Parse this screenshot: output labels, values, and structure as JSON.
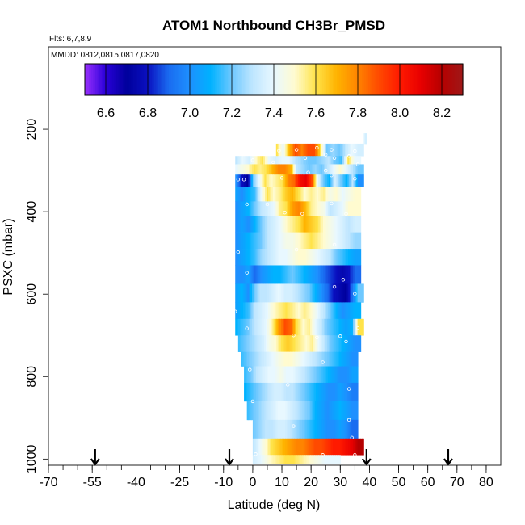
{
  "chart_data": {
    "type": "heatmap",
    "title": "ATOM1 Northbound CH3Br_PMSD",
    "subtitle_flights": "Flts: 6,7,8,9",
    "subtitle_dates": "MMDD: 0812,0815,0817,0820",
    "xlabel": "Latitude (deg N)",
    "ylabel": "PSXC (mbar)",
    "xlim": [
      -70,
      85
    ],
    "ylim": [
      1015,
      0
    ],
    "x_ticks": [
      -70,
      -55,
      -40,
      -25,
      -10,
      0,
      10,
      20,
      30,
      40,
      50,
      60,
      70,
      80
    ],
    "x_tick_labels": [
      "-70",
      "-55",
      "-40",
      "-25",
      "-10",
      "0",
      "10",
      "20",
      "30",
      "40",
      "50",
      "60",
      "70",
      "80"
    ],
    "x_minor_step": 5,
    "y_ticks": [
      200,
      400,
      600,
      800,
      1000
    ],
    "y_tick_labels": [
      "200",
      "400",
      "600",
      "800",
      "1000"
    ],
    "colorbar": {
      "min": 6.5,
      "max": 8.3,
      "ticks": [
        6.6,
        6.8,
        7.0,
        7.2,
        7.4,
        7.6,
        7.8,
        8.0,
        8.2
      ],
      "tick_labels": [
        "6.6",
        "6.8",
        "7.0",
        "7.2",
        "7.4",
        "7.6",
        "7.8",
        "8.0",
        "8.2"
      ],
      "stops": [
        {
          "v": 6.5,
          "c": "#9b30ff"
        },
        {
          "v": 6.6,
          "c": "#2a00d8"
        },
        {
          "v": 6.7,
          "c": "#00009c"
        },
        {
          "v": 6.8,
          "c": "#0a10c0"
        },
        {
          "v": 6.9,
          "c": "#1a6cf0"
        },
        {
          "v": 7.0,
          "c": "#1e90ff"
        },
        {
          "v": 7.1,
          "c": "#00b2ff"
        },
        {
          "v": 7.2,
          "c": "#6ec8ff"
        },
        {
          "v": 7.3,
          "c": "#bfe6ff"
        },
        {
          "v": 7.4,
          "c": "#e8f8ff"
        },
        {
          "v": 7.5,
          "c": "#fffbd0"
        },
        {
          "v": 7.6,
          "c": "#ffe34a"
        },
        {
          "v": 7.7,
          "c": "#ffb300"
        },
        {
          "v": 7.8,
          "c": "#ff8400"
        },
        {
          "v": 7.9,
          "c": "#ff4a00"
        },
        {
          "v": 8.0,
          "c": "#ff1a00"
        },
        {
          "v": 8.1,
          "c": "#e80000"
        },
        {
          "v": 8.2,
          "c": "#b50000"
        },
        {
          "v": 8.3,
          "c": "#a01818"
        }
      ]
    },
    "flight_markers_lat": [
      -54,
      -8,
      39,
      67
    ],
    "rows": [
      {
        "p": [
          210,
          235
        ],
        "lat": [
          38,
          39
        ],
        "v": [
          7.4,
          7.35
        ]
      },
      {
        "p": [
          235,
          265
        ],
        "lat": [
          8,
          38
        ],
        "v": [
          7.6,
          7.4,
          7.7,
          7.9,
          7.8,
          7.9,
          7.9,
          7.6,
          7.2,
          7.25,
          7.2,
          7.3,
          7.4,
          7.35
        ]
      },
      {
        "p": [
          265,
          285
        ],
        "lat": [
          -6,
          37
        ],
        "v": [
          7.3,
          7.4,
          7.35,
          7.5,
          7.6,
          7.4,
          7.35,
          7.4,
          7.4,
          7.3,
          7.25,
          7.2,
          7.2,
          7.25,
          7.3,
          7.2,
          7.15,
          7.6,
          7.4
        ]
      },
      {
        "p": [
          285,
          310
        ],
        "lat": [
          -6,
          38
        ],
        "v": [
          7.4,
          7.45,
          7.5,
          7.6,
          7.55,
          7.6,
          7.7,
          7.8,
          7.8,
          7.7,
          7.3,
          7.25,
          7.2,
          7.25,
          7.2,
          7.3,
          7.4,
          7.5,
          7.4,
          7.3,
          7.2
        ]
      },
      {
        "p": [
          310,
          340
        ],
        "lat": [
          -6,
          38
        ],
        "v": [
          7.0,
          6.8,
          6.7,
          7.2,
          7.4,
          7.6,
          7.5,
          7.55,
          7.6,
          7.8,
          7.85,
          8.05,
          8.1,
          7.9,
          7.4,
          7.2,
          7.1,
          7.35,
          7.2,
          7.1,
          7.3,
          7.0
        ]
      },
      {
        "p": [
          340,
          375
        ],
        "lat": [
          -6,
          37
        ],
        "v": [
          7.05,
          7.0,
          7.1,
          7.15,
          7.4,
          7.6,
          7.5,
          7.55,
          7.65,
          7.7,
          7.6,
          7.5,
          7.55,
          7.5,
          7.55,
          7.45,
          7.5,
          7.4,
          7.45,
          7.5
        ]
      },
      {
        "p": [
          375,
          410
        ],
        "lat": [
          -6,
          37
        ],
        "v": [
          7.0,
          7.05,
          7.1,
          7.2,
          7.3,
          7.35,
          7.4,
          7.55,
          7.6,
          7.75,
          7.8,
          7.7,
          7.55,
          7.5,
          7.45,
          7.3,
          7.35,
          7.4,
          7.5,
          7.5
        ]
      },
      {
        "p": [
          410,
          450
        ],
        "lat": [
          -6,
          37
        ],
        "v": [
          7.0,
          7.05,
          7.0,
          7.1,
          7.2,
          7.3,
          7.35,
          7.4,
          7.5,
          7.55,
          7.6,
          7.7,
          7.65,
          7.6,
          7.5,
          7.45,
          7.4,
          7.35,
          7.3,
          7.35
        ]
      },
      {
        "p": [
          450,
          490
        ],
        "lat": [
          -6,
          37
        ],
        "v": [
          7.0,
          7.05,
          7.1,
          7.15,
          7.2,
          7.3,
          7.35,
          7.4,
          7.45,
          7.45,
          7.5,
          7.55,
          7.6,
          7.55,
          7.5,
          7.45,
          7.4,
          7.35,
          7.3,
          7.25
        ]
      },
      {
        "p": [
          490,
          530
        ],
        "lat": [
          -6,
          37
        ],
        "v": [
          7.0,
          7.05,
          7.1,
          7.15,
          7.25,
          7.3,
          7.35,
          7.4,
          7.4,
          7.45,
          7.5,
          7.5,
          7.45,
          7.4,
          7.35,
          7.3,
          7.2,
          7.15,
          7.1,
          7.05
        ]
      },
      {
        "p": [
          530,
          575
        ],
        "lat": [
          -6,
          37
        ],
        "v": [
          7.0,
          7.0,
          7.05,
          6.9,
          7.0,
          7.05,
          7.1,
          7.1,
          7.15,
          7.2,
          7.15,
          7.1,
          7.05,
          7.0,
          6.9,
          6.85,
          6.8,
          6.75,
          6.8,
          6.9
        ]
      },
      {
        "p": [
          575,
          620
        ],
        "lat": [
          -6,
          38
        ],
        "v": [
          7.05,
          7.1,
          7.0,
          7.2,
          7.3,
          7.3,
          7.35,
          7.4,
          7.35,
          7.35,
          7.3,
          7.25,
          7.2,
          7.1,
          7.0,
          6.9,
          6.8,
          6.75,
          6.7,
          6.9,
          7.2
        ]
      },
      {
        "p": [
          620,
          660
        ],
        "lat": [
          -6,
          37
        ],
        "v": [
          7.05,
          7.1,
          7.15,
          7.3,
          7.35,
          7.4,
          7.5,
          7.55,
          7.6,
          7.55,
          7.5,
          7.55,
          7.5,
          7.4,
          7.3,
          7.2,
          7.1,
          7.0,
          7.05,
          7.1
        ]
      },
      {
        "p": [
          660,
          700
        ],
        "lat": [
          -6,
          38
        ],
        "v": [
          7.1,
          7.15,
          7.2,
          7.3,
          7.35,
          7.4,
          7.55,
          7.75,
          7.9,
          7.85,
          7.6,
          7.5,
          7.55,
          7.4,
          7.3,
          7.2,
          7.15,
          7.1,
          7.05,
          7.1,
          7.6
        ]
      },
      {
        "p": [
          700,
          740
        ],
        "lat": [
          -5,
          37
        ],
        "v": [
          7.15,
          7.2,
          7.25,
          7.3,
          7.35,
          7.45,
          7.5,
          7.6,
          7.65,
          7.6,
          7.55,
          7.5,
          7.55,
          7.4,
          7.3,
          7.2,
          7.15,
          7.1,
          7.05,
          7.0
        ]
      },
      {
        "p": [
          740,
          775
        ],
        "lat": [
          -4,
          36
        ],
        "v": [
          7.15,
          7.2,
          7.25,
          7.3,
          7.35,
          7.4,
          7.45,
          7.5,
          7.5,
          7.45,
          7.4,
          7.35,
          7.3,
          7.25,
          7.2,
          7.15,
          7.1,
          7.05,
          7.0
        ]
      },
      {
        "p": [
          775,
          815
        ],
        "lat": [
          -3,
          36
        ],
        "v": [
          7.15,
          7.2,
          7.3,
          7.35,
          7.4,
          7.4,
          7.45,
          7.4,
          7.4,
          7.35,
          7.3,
          7.25,
          7.2,
          7.15,
          7.1,
          7.05,
          7.0,
          7.0,
          7.05
        ]
      },
      {
        "p": [
          815,
          860
        ],
        "lat": [
          -3,
          36
        ],
        "v": [
          7.1,
          7.15,
          7.2,
          7.25,
          7.3,
          7.35,
          7.35,
          7.3,
          7.3,
          7.25,
          7.2,
          7.15,
          7.1,
          7.05,
          7.0,
          7.0,
          7.05,
          7.0,
          6.95
        ]
      },
      {
        "p": [
          860,
          905
        ],
        "lat": [
          -2,
          36
        ],
        "v": [
          7.15,
          7.2,
          7.25,
          7.3,
          7.35,
          7.4,
          7.4,
          7.35,
          7.3,
          7.25,
          7.2,
          7.1,
          7.05,
          7.0,
          7.05,
          7.1,
          7.05,
          7.0
        ]
      },
      {
        "p": [
          905,
          950
        ],
        "lat": [
          0,
          36
        ],
        "v": [
          7.2,
          7.25,
          7.3,
          7.3,
          7.35,
          7.35,
          7.3,
          7.25,
          7.2,
          7.15,
          7.1,
          7.05,
          7.0,
          7.0,
          7.05,
          7.0,
          6.9
        ]
      },
      {
        "p": [
          950,
          990
        ],
        "lat": [
          0,
          38
        ],
        "v": [
          7.3,
          7.4,
          7.5,
          7.6,
          7.65,
          7.7,
          7.75,
          7.8,
          7.8,
          7.85,
          7.9,
          7.9,
          7.95,
          8.0,
          8.0,
          8.05,
          8.1,
          8.2
        ]
      },
      {
        "p": [
          990,
          1012
        ],
        "lat": [
          0,
          30
        ],
        "v": [
          7.35,
          7.4,
          7.5,
          7.55,
          7.6,
          7.6,
          7.55,
          7.5,
          7.45,
          7.4,
          7.4
        ]
      }
    ],
    "samples": [
      [
        9,
        252
      ],
      [
        15,
        250
      ],
      [
        22,
        245
      ],
      [
        25,
        262
      ],
      [
        27,
        250
      ],
      [
        33,
        225
      ],
      [
        35,
        253
      ],
      [
        0,
        275
      ],
      [
        7,
        280
      ],
      [
        18,
        270
      ],
      [
        28,
        270
      ],
      [
        33,
        265
      ],
      [
        36,
        285
      ],
      [
        -5,
        322
      ],
      [
        -3,
        322
      ],
      [
        10,
        318
      ],
      [
        19,
        305
      ],
      [
        25,
        300
      ],
      [
        27,
        312
      ],
      [
        35,
        320
      ],
      [
        -2,
        382
      ],
      [
        5,
        382
      ],
      [
        11,
        402
      ],
      [
        17,
        405
      ],
      [
        27,
        380
      ],
      [
        32,
        405
      ],
      [
        -5,
        498
      ],
      [
        15,
        492
      ],
      [
        28,
        480
      ],
      [
        -2,
        548
      ],
      [
        31,
        565
      ],
      [
        28,
        582
      ],
      [
        35,
        599
      ],
      [
        -6,
        642
      ],
      [
        -2,
        683
      ],
      [
        14,
        700
      ],
      [
        22,
        705
      ],
      [
        30,
        702
      ],
      [
        36,
        682
      ],
      [
        32,
        715
      ],
      [
        24,
        765
      ],
      [
        -1,
        783
      ],
      [
        12,
        820
      ],
      [
        33,
        830
      ],
      [
        0,
        860
      ],
      [
        33,
        905
      ],
      [
        14,
        920
      ],
      [
        34,
        948
      ],
      [
        1,
        988
      ],
      [
        24,
        990
      ],
      [
        35,
        990
      ]
    ]
  }
}
